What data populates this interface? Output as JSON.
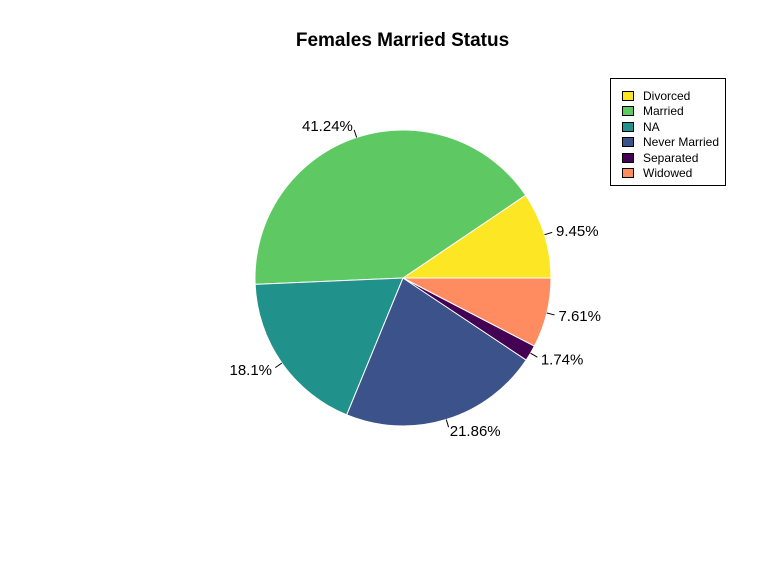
{
  "chart_data": {
    "type": "pie",
    "title": "Females Married Status",
    "categories": [
      "Divorced",
      "Married",
      "NA",
      "Never Married",
      "Separated",
      "Widowed"
    ],
    "values": [
      9.45,
      41.24,
      18.1,
      21.86,
      1.74,
      7.61
    ],
    "labels": [
      "9.45%",
      "41.24%",
      "18.1%",
      "21.86%",
      "1.74%",
      "7.61%"
    ],
    "colors": [
      "#FDE725",
      "#5EC962",
      "#21918C",
      "#3B528B",
      "#440154",
      "#FF8C61"
    ],
    "legend_position": "top-right"
  }
}
